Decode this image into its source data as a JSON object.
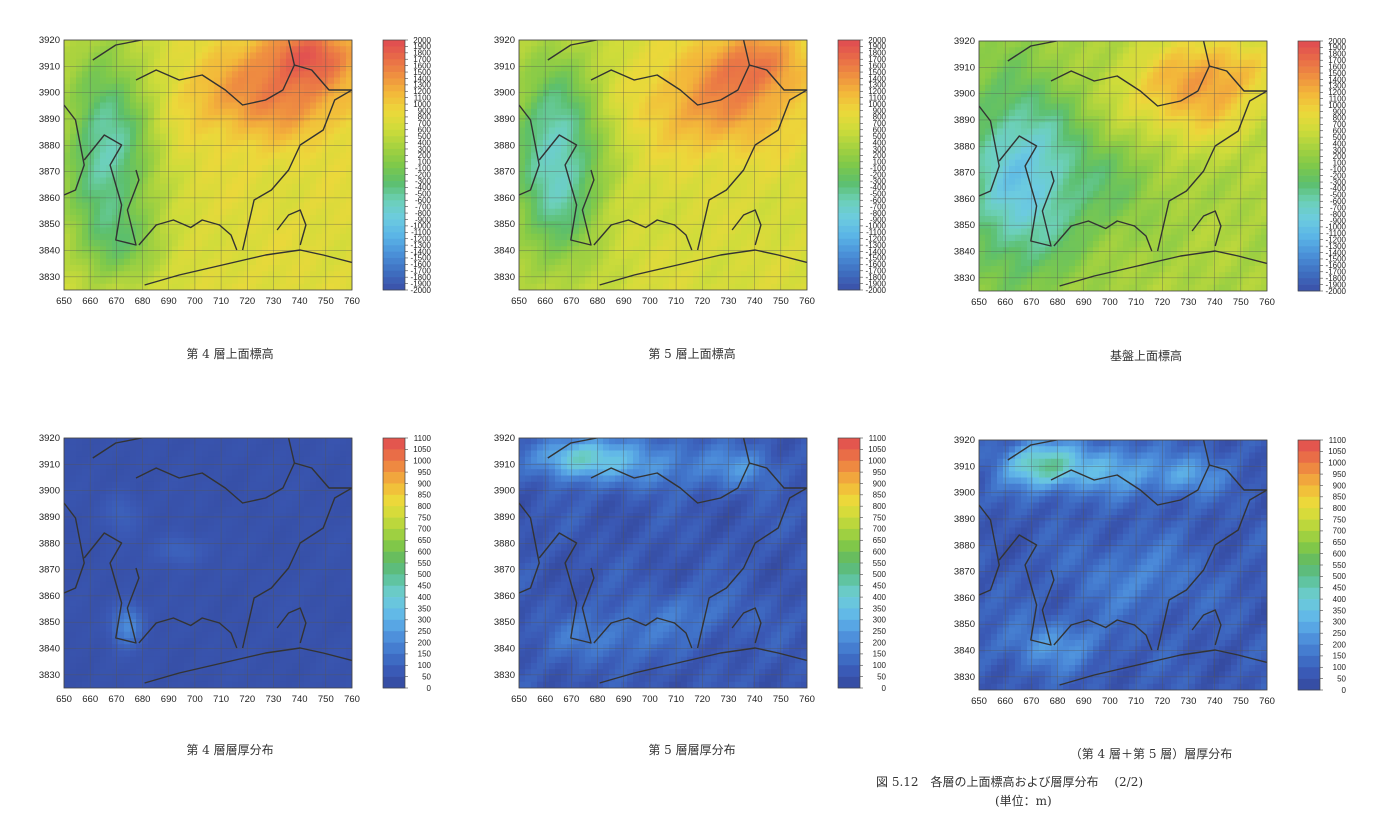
{
  "figure": {
    "caption_line1": "図 5.12　各層の上面標高および層厚分布　 (2/2)",
    "caption_line2": "(単位：m)"
  },
  "colors": {
    "elevation_scale": [
      "#3a4fa8",
      "#3f6fc0",
      "#4a90d8",
      "#5ab4e6",
      "#6ccbe0",
      "#6cd0b8",
      "#5cbf6c",
      "#7fc94a",
      "#a6d23f",
      "#cfdc3a",
      "#ecd83a",
      "#f3b83a",
      "#ef9040",
      "#e86a48",
      "#e04a52"
    ],
    "thickness_scale": [
      "#34489c",
      "#3a58b4",
      "#3f6fc6",
      "#4a88d8",
      "#58a6e4",
      "#66c0e8",
      "#6ccdd0",
      "#5fc39c",
      "#5cb86a",
      "#7cc64a",
      "#a6d23f",
      "#cfdc3a",
      "#ecd83a",
      "#f3b83a",
      "#ef9040",
      "#e86a48",
      "#e04a52"
    ],
    "coast_line": "#333333",
    "grid_line": "#555555"
  },
  "chart_data": [
    {
      "type": "heatmap",
      "caption": "第 4 層上面標高",
      "x_ticks": [
        "650",
        "660",
        "670",
        "680",
        "690",
        "700",
        "710",
        "720",
        "730",
        "740",
        "750",
        "760"
      ],
      "y_ticks": [
        "3920",
        "3910",
        "3900",
        "3890",
        "3880",
        "3870",
        "3860",
        "3850",
        "3840",
        "3830"
      ],
      "xlim": [
        650,
        760
      ],
      "ylim": [
        3825,
        3920
      ],
      "colorbar_ticks": [
        "2000",
        "1900",
        "1800",
        "1700",
        "1600",
        "1500",
        "1400",
        "1300",
        "1200",
        "1100",
        "1000",
        "900",
        "800",
        "700",
        "600",
        "500",
        "400",
        "300",
        "200",
        "100",
        "-100",
        "-200",
        "-300",
        "-400",
        "-500",
        "-600",
        "-700",
        "-800",
        "-900",
        "-1000",
        "-1100",
        "-1200",
        "-1300",
        "-1400",
        "-1500",
        "-1600",
        "-1700",
        "-1800",
        "-1900",
        "-2000"
      ],
      "colorbar_range": [
        -2000,
        2000
      ],
      "scale": "elevation",
      "variant": 0
    },
    {
      "type": "heatmap",
      "caption": "第 5 層上面標高",
      "x_ticks": [
        "650",
        "660",
        "670",
        "680",
        "690",
        "700",
        "710",
        "720",
        "730",
        "740",
        "750",
        "760"
      ],
      "y_ticks": [
        "3920",
        "3910",
        "3900",
        "3890",
        "3880",
        "3870",
        "3860",
        "3850",
        "3840",
        "3830"
      ],
      "xlim": [
        650,
        760
      ],
      "ylim": [
        3825,
        3920
      ],
      "colorbar_ticks": [
        "2000",
        "1900",
        "1800",
        "1700",
        "1600",
        "1500",
        "1400",
        "1300",
        "1200",
        "1100",
        "1000",
        "900",
        "800",
        "700",
        "600",
        "500",
        "400",
        "300",
        "200",
        "100",
        "-100",
        "-200",
        "-300",
        "-400",
        "-500",
        "-600",
        "-700",
        "-800",
        "-900",
        "-1000",
        "-1100",
        "-1200",
        "-1300",
        "-1400",
        "-1500",
        "-1600",
        "-1700",
        "-1800",
        "-1900",
        "-2000"
      ],
      "colorbar_range": [
        -2000,
        2000
      ],
      "scale": "elevation",
      "variant": 1
    },
    {
      "type": "heatmap",
      "caption": "基盤上面標高",
      "x_ticks": [
        "650",
        "660",
        "670",
        "680",
        "690",
        "700",
        "710",
        "720",
        "730",
        "740",
        "750",
        "760"
      ],
      "y_ticks": [
        "3920",
        "3910",
        "3900",
        "3890",
        "3880",
        "3870",
        "3860",
        "3850",
        "3840",
        "3830"
      ],
      "xlim": [
        650,
        760
      ],
      "ylim": [
        3825,
        3920
      ],
      "colorbar_ticks": [
        "2000",
        "1900",
        "1800",
        "1700",
        "1600",
        "1500",
        "1400",
        "1300",
        "1200",
        "1100",
        "1000",
        "900",
        "800",
        "700",
        "600",
        "500",
        "400",
        "300",
        "200",
        "100",
        "-100",
        "-200",
        "-300",
        "-400",
        "-500",
        "-600",
        "-700",
        "-800",
        "-900",
        "-1000",
        "-1100",
        "-1200",
        "-1300",
        "-1400",
        "-1500",
        "-1600",
        "-1700",
        "-1800",
        "-1900",
        "-2000"
      ],
      "colorbar_range": [
        -2000,
        2000
      ],
      "scale": "elevation",
      "variant": 2
    },
    {
      "type": "heatmap",
      "caption": "第 4 層層厚分布",
      "x_ticks": [
        "650",
        "660",
        "670",
        "680",
        "690",
        "700",
        "710",
        "720",
        "730",
        "740",
        "750",
        "760"
      ],
      "y_ticks": [
        "3920",
        "3910",
        "3900",
        "3890",
        "3880",
        "3870",
        "3860",
        "3850",
        "3840",
        "3830"
      ],
      "xlim": [
        650,
        760
      ],
      "ylim": [
        3825,
        3920
      ],
      "colorbar_ticks": [
        "1100",
        "1050",
        "1000",
        "950",
        "900",
        "850",
        "800",
        "750",
        "700",
        "650",
        "600",
        "550",
        "500",
        "450",
        "400",
        "350",
        "300",
        "250",
        "200",
        "150",
        "100",
        "50",
        "0"
      ],
      "colorbar_range": [
        0,
        1100
      ],
      "scale": "thickness",
      "variant": 3
    },
    {
      "type": "heatmap",
      "caption": "第 5 層層厚分布",
      "x_ticks": [
        "650",
        "660",
        "670",
        "680",
        "690",
        "700",
        "710",
        "720",
        "730",
        "740",
        "750",
        "760"
      ],
      "y_ticks": [
        "3920",
        "3910",
        "3900",
        "3890",
        "3880",
        "3870",
        "3860",
        "3850",
        "3840",
        "3830"
      ],
      "xlim": [
        650,
        760
      ],
      "ylim": [
        3825,
        3920
      ],
      "colorbar_ticks": [
        "1100",
        "1050",
        "1000",
        "950",
        "900",
        "850",
        "800",
        "750",
        "700",
        "650",
        "600",
        "550",
        "500",
        "450",
        "400",
        "350",
        "300",
        "250",
        "200",
        "150",
        "100",
        "50",
        "0"
      ],
      "colorbar_range": [
        0,
        1100
      ],
      "scale": "thickness",
      "variant": 4
    },
    {
      "type": "heatmap",
      "caption": "（第 4 層＋第 5 層）層厚分布",
      "x_ticks": [
        "650",
        "660",
        "670",
        "680",
        "690",
        "700",
        "710",
        "720",
        "730",
        "740",
        "750",
        "760"
      ],
      "y_ticks": [
        "3920",
        "3910",
        "3900",
        "3890",
        "3880",
        "3870",
        "3860",
        "3850",
        "3840",
        "3830"
      ],
      "xlim": [
        650,
        760
      ],
      "ylim": [
        3825,
        3920
      ],
      "colorbar_ticks": [
        "1100",
        "1050",
        "1000",
        "950",
        "900",
        "850",
        "800",
        "750",
        "700",
        "650",
        "600",
        "550",
        "500",
        "450",
        "400",
        "350",
        "300",
        "250",
        "200",
        "150",
        "100",
        "50",
        "0"
      ],
      "colorbar_range": [
        0,
        1100
      ],
      "scale": "thickness",
      "variant": 5
    }
  ]
}
